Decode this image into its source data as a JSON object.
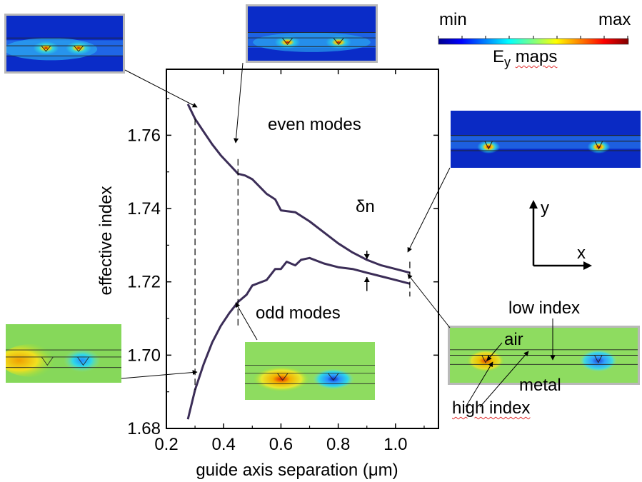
{
  "chart_data": {
    "type": "line",
    "xlabel": "guide axis separation (μm)",
    "ylabel": "effective index",
    "xlim": [
      0.2,
      1.15
    ],
    "ylim": [
      1.68,
      1.778
    ],
    "xticks": [
      "0.2",
      "0.4",
      "0.6",
      "0.8",
      "1.0"
    ],
    "xtick_values": [
      0.2,
      0.4,
      0.6,
      0.8,
      1.0
    ],
    "yticks": [
      "1.68",
      "1.70",
      "1.72",
      "1.74",
      "1.76"
    ],
    "ytick_values": [
      1.68,
      1.7,
      1.72,
      1.74,
      1.76
    ],
    "series": [
      {
        "name": "even modes",
        "x": [
          0.275,
          0.3,
          0.33,
          0.36,
          0.39,
          0.42,
          0.45,
          0.475,
          0.5,
          0.55,
          0.58,
          0.6,
          0.65,
          0.7,
          0.75,
          0.8,
          0.85,
          0.9,
          0.95,
          1.0,
          1.05
        ],
        "y": [
          1.7685,
          1.7645,
          1.761,
          1.7575,
          1.7545,
          1.752,
          1.7495,
          1.749,
          1.748,
          1.744,
          1.7425,
          1.7395,
          1.739,
          1.7365,
          1.7335,
          1.7305,
          1.728,
          1.726,
          1.7245,
          1.7235,
          1.7225
        ],
        "color": "#3b2d57"
      },
      {
        "name": "odd modes",
        "x": [
          0.275,
          0.3,
          0.33,
          0.36,
          0.39,
          0.42,
          0.45,
          0.48,
          0.5,
          0.55,
          0.58,
          0.6,
          0.62,
          0.65,
          0.67,
          0.7,
          0.75,
          0.8,
          0.85,
          0.9,
          0.95,
          1.0,
          1.05
        ],
        "y": [
          1.6825,
          1.6905,
          1.6975,
          1.7035,
          1.708,
          1.7115,
          1.7145,
          1.7165,
          1.719,
          1.7205,
          1.7235,
          1.7235,
          1.7255,
          1.7245,
          1.726,
          1.7265,
          1.725,
          1.724,
          1.7235,
          1.7225,
          1.7215,
          1.7205,
          1.7195
        ],
        "color": "#3b2d57"
      }
    ],
    "annotations": {
      "even_label": "even modes",
      "odd_label": "odd modes",
      "delta_n": "δn"
    }
  },
  "colorbar": {
    "min_label": "min",
    "max_label": "max",
    "caption_main": "E",
    "caption_sub": "y",
    "caption_rest": "maps"
  },
  "axes_icon": {
    "y_label": "y",
    "x_label": "x"
  },
  "structure_labels": {
    "low_index": "low index",
    "air": "air",
    "metal": "metal",
    "high_index": "high index"
  }
}
